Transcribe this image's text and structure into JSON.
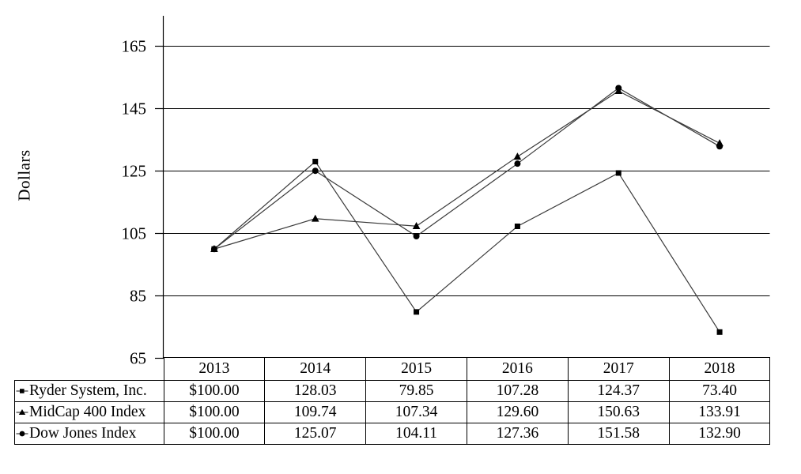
{
  "chart_data": {
    "type": "line",
    "title": "",
    "xlabel": "",
    "ylabel": "Dollars",
    "categories": [
      "2013",
      "2014",
      "2015",
      "2016",
      "2017",
      "2018"
    ],
    "series": [
      {
        "name": "Ryder System, Inc.",
        "marker": "square",
        "values": [
          100.0,
          128.03,
          79.85,
          107.28,
          124.37,
          73.4
        ]
      },
      {
        "name": "MidCap 400 Index",
        "marker": "triangle",
        "values": [
          100.0,
          109.74,
          107.34,
          129.6,
          150.63,
          133.91
        ]
      },
      {
        "name": "Dow Jones Index",
        "marker": "circle",
        "values": [
          100.0,
          125.07,
          104.11,
          127.36,
          151.58,
          132.9
        ]
      }
    ],
    "yticks": [
      65,
      85,
      105,
      125,
      145,
      165
    ],
    "ylim": [
      65,
      175
    ],
    "grid": true,
    "legend_position": "table-left",
    "line_color": "#3a3a3a",
    "marker_color": "#000000",
    "grid_color": "#000000"
  },
  "table": {
    "column_headers": [
      "2013",
      "2014",
      "2015",
      "2016",
      "2017",
      "2018"
    ],
    "rows": [
      {
        "label": "Ryder System, Inc.",
        "marker": "square",
        "values": [
          "$100.00",
          "128.03",
          "79.85",
          "107.28",
          "124.37",
          "73.40"
        ]
      },
      {
        "label": "MidCap 400 Index",
        "marker": "triangle",
        "values": [
          "$100.00",
          "109.74",
          "107.34",
          "129.60",
          "150.63",
          "133.91"
        ]
      },
      {
        "label": "Dow Jones Index",
        "marker": "circle",
        "values": [
          "$100.00",
          "125.07",
          "104.11",
          "127.36",
          "151.58",
          "132.90"
        ]
      }
    ]
  }
}
